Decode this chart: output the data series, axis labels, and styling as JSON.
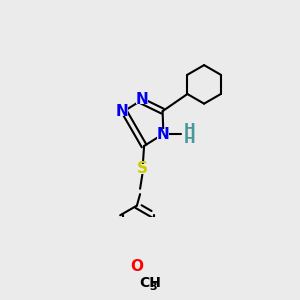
{
  "background_color": "#ebebeb",
  "bond_color": "#000000",
  "bond_width": 1.5,
  "atom_colors": {
    "N": "#0000ee",
    "S": "#cccc00",
    "O": "#ff0000",
    "C": "#000000",
    "H": "#4a9999"
  },
  "font_size": 11,
  "font_size_sub": 8
}
